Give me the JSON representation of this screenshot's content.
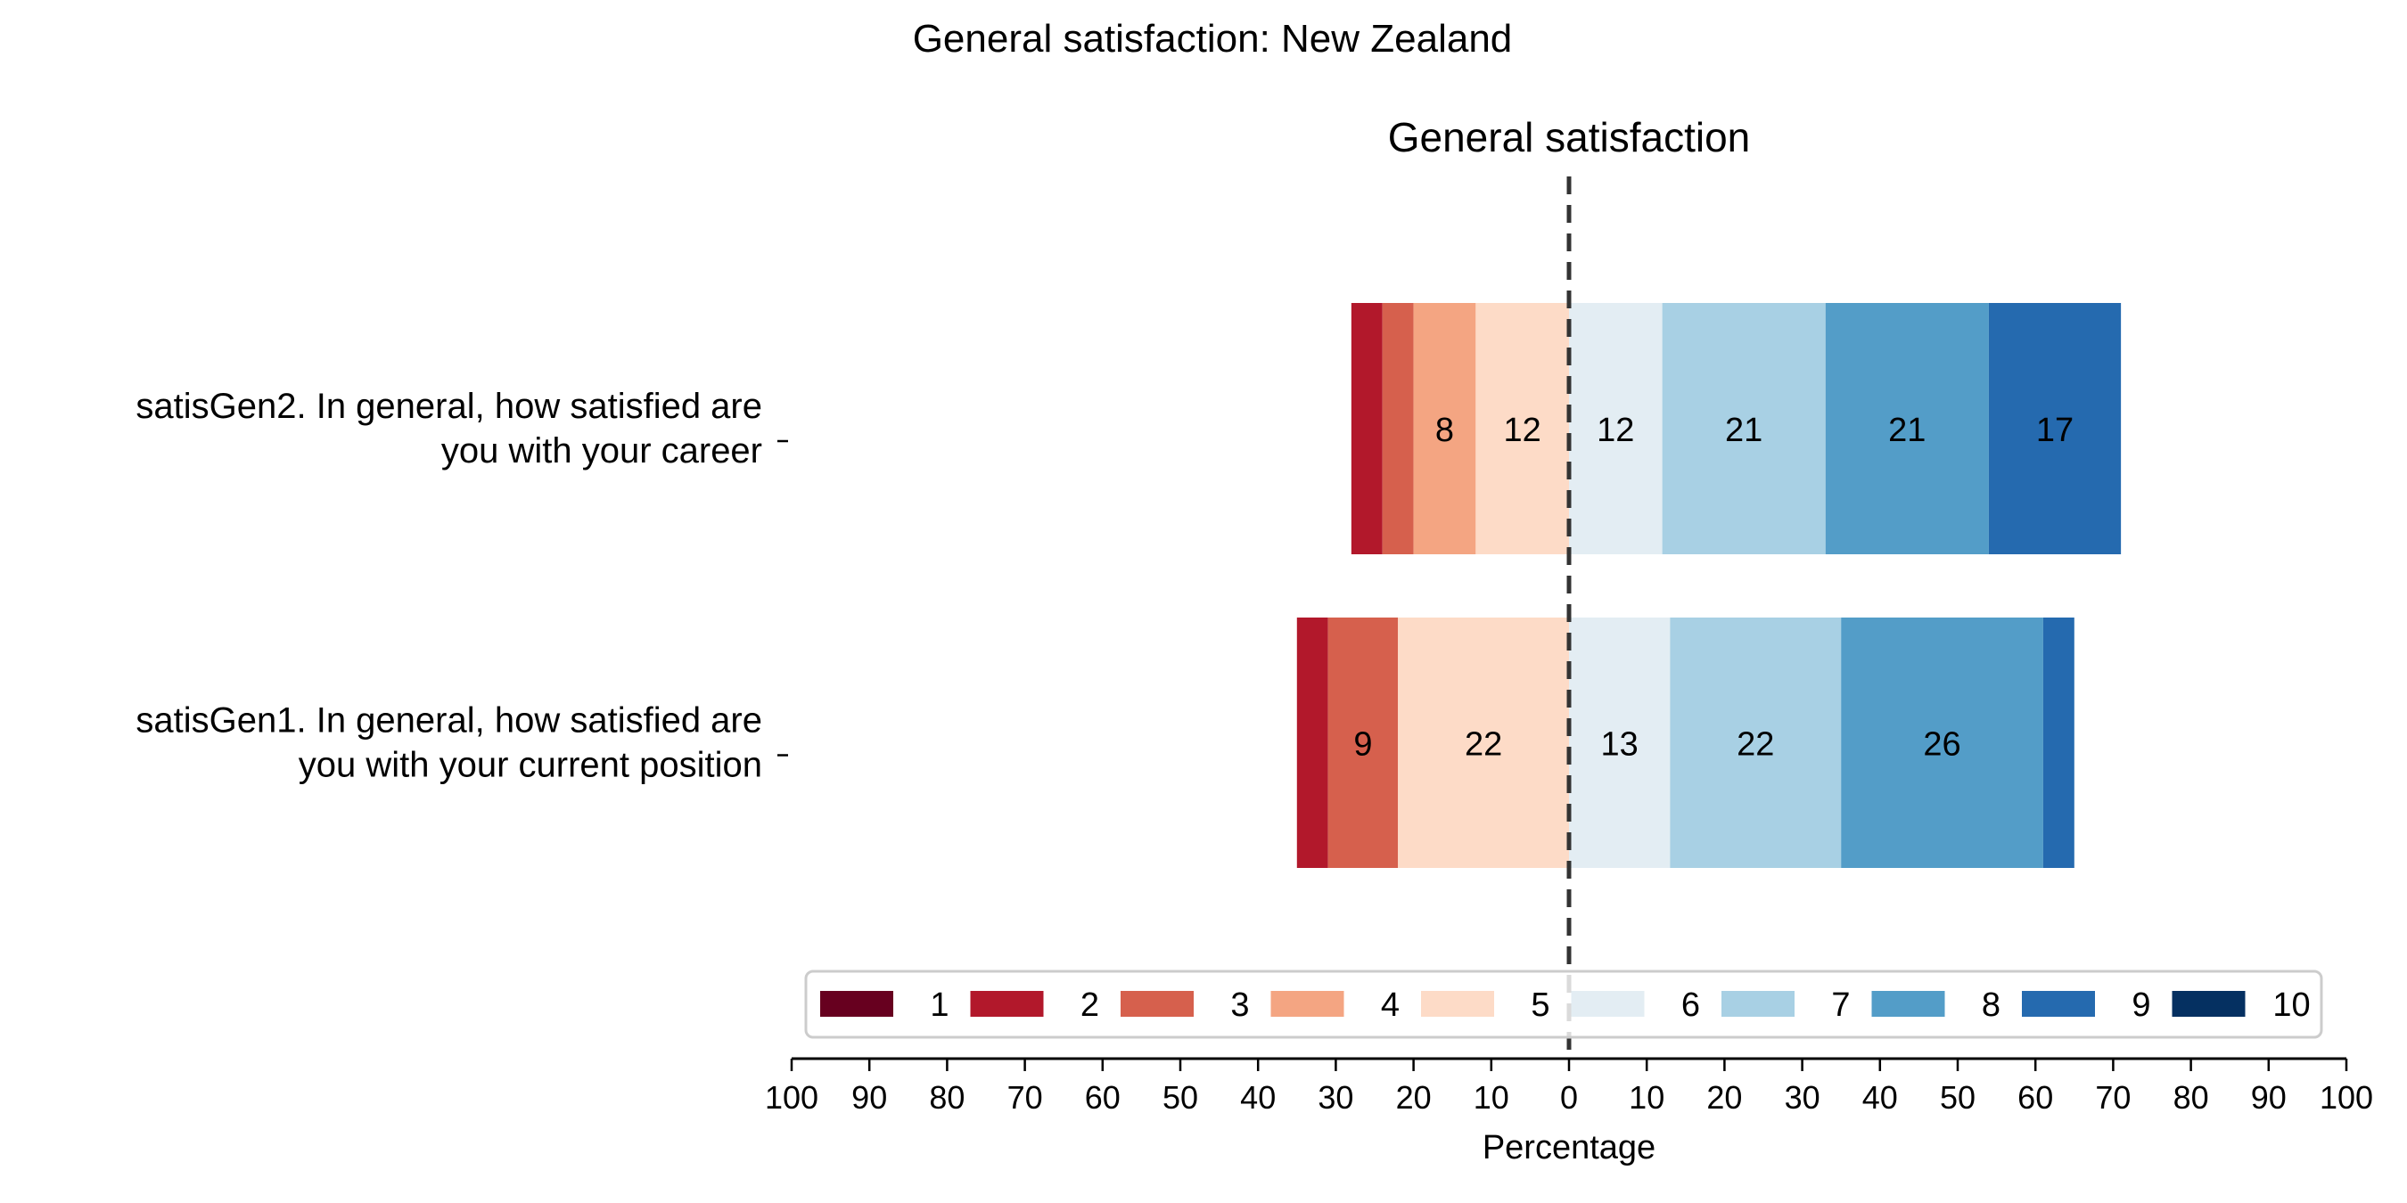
{
  "chart_data": {
    "type": "bar",
    "orientation": "horizontal-diverging",
    "title": "General satisfaction: New Zealand",
    "subtitle": "General satisfaction",
    "xlabel": "Percentage",
    "xlim": [
      -100,
      100
    ],
    "x_tick_labels": [
      "100",
      "90",
      "80",
      "70",
      "60",
      "50",
      "40",
      "30",
      "20",
      "10",
      "0",
      "10",
      "20",
      "30",
      "40",
      "50",
      "60",
      "70",
      "80",
      "90",
      "100"
    ],
    "center_line": 0,
    "grid": false,
    "legend_placement": "bottom",
    "levels": [
      {
        "name": "1",
        "color": "#67001f"
      },
      {
        "name": "2",
        "color": "#b2182b"
      },
      {
        "name": "3",
        "color": "#d6604d"
      },
      {
        "name": "4",
        "color": "#f4a582"
      },
      {
        "name": "5",
        "color": "#fddbc7"
      },
      {
        "name": "6",
        "color": "#e3edf3"
      },
      {
        "name": "7",
        "color": "#a8d0e4"
      },
      {
        "name": "8",
        "color": "#539dc8"
      },
      {
        "name": "9",
        "color": "#256aaf"
      },
      {
        "name": "10",
        "color": "#053061"
      }
    ],
    "categories": [
      {
        "label_lines": [
          "satisGen2. In general, how satisfied are",
          "you with your career"
        ],
        "values": [
          0,
          4,
          4,
          8,
          12,
          12,
          21,
          21,
          17,
          0
        ],
        "labels": [
          "",
          "",
          "",
          "8",
          "12",
          "12",
          "21",
          "21",
          "17",
          ""
        ]
      },
      {
        "label_lines": [
          "satisGen1. In general, how satisfied are",
          "you with your current position"
        ],
        "values": [
          0,
          4,
          9,
          0,
          22,
          13,
          22,
          26,
          4,
          0
        ],
        "labels": [
          "",
          "",
          "9",
          "",
          "22",
          "13",
          "22",
          "26",
          "",
          ""
        ]
      }
    ]
  }
}
